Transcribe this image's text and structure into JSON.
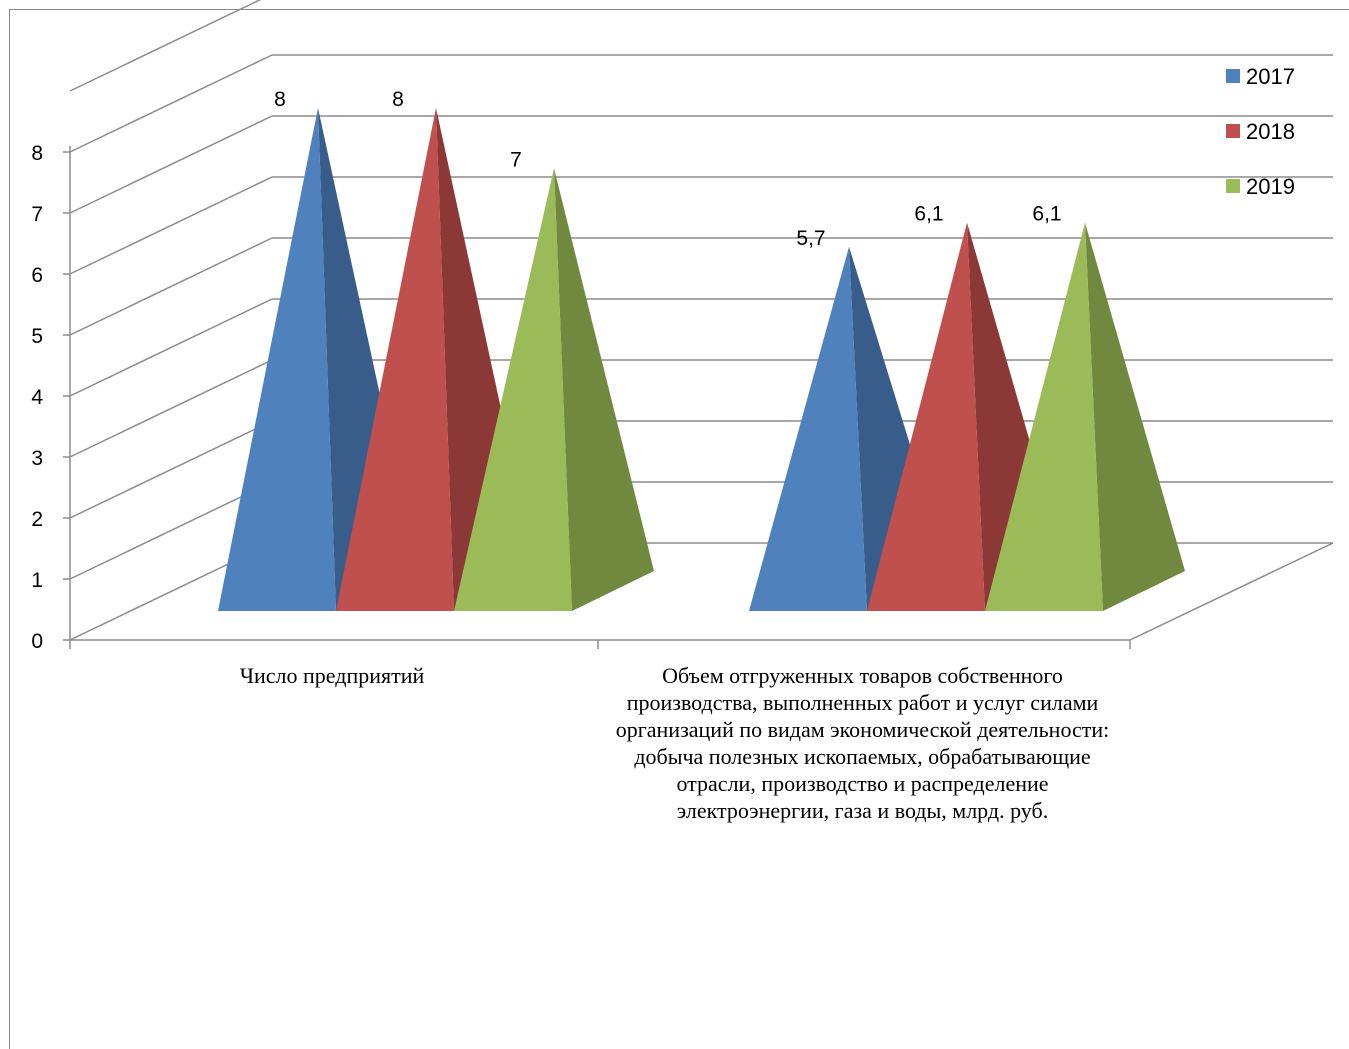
{
  "chart_data": {
    "type": "bar",
    "shape": "pyramid-3d",
    "categories": [
      "Число предприятий",
      "Объем отгруженных товаров собственного производства, выполненных работ и услуг силами организаций по видам экономической деятельности: добыча полезных ископаемых, обрабатывающие отрасли, производство и распределение электроэнергии, газа и воды, млрд. руб."
    ],
    "series": [
      {
        "name": "2017",
        "values": [
          8,
          5.7
        ],
        "labels": [
          "8",
          "5,7"
        ],
        "color": "#4F81BD",
        "shade": "#385D8A"
      },
      {
        "name": "2018",
        "values": [
          8,
          6.1
        ],
        "labels": [
          "8",
          "6,1"
        ],
        "color": "#C0504D",
        "shade": "#8C3836"
      },
      {
        "name": "2019",
        "values": [
          7,
          6.1
        ],
        "labels": [
          "7",
          "6,1"
        ],
        "color": "#9BBB59",
        "shade": "#71893F"
      }
    ],
    "yticks": [
      "0",
      "1",
      "2",
      "3",
      "4",
      "5",
      "6",
      "7",
      "8"
    ],
    "ylim": [
      0,
      8
    ],
    "title": "",
    "xlabel": "",
    "ylabel": "",
    "grid": true,
    "legend": "top-right"
  }
}
